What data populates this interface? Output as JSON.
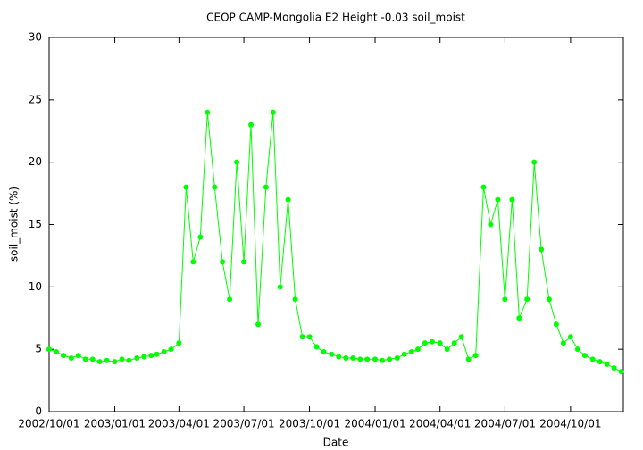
{
  "chart_data": {
    "type": "line",
    "title": "CEOP CAMP-Mongolia E2 Height -0.03 soil_moist",
    "xlabel": "Date",
    "ylabel": "soil_moist (%)",
    "xlim": [
      "2002/10/01",
      "2004/12/14"
    ],
    "xticks": [
      "2002/10/01",
      "2003/01/01",
      "2003/04/01",
      "2003/07/01",
      "2003/10/01",
      "2004/01/01",
      "2004/04/01",
      "2004/07/01",
      "2004/10/01"
    ],
    "ylim": [
      0,
      30
    ],
    "yticks": [
      0,
      5,
      10,
      15,
      20,
      25,
      30
    ],
    "grid": false,
    "x": [
      "2002/10/01",
      "2002/10/11",
      "2002/10/21",
      "2002/11/01",
      "2002/11/11",
      "2002/11/21",
      "2002/12/01",
      "2002/12/11",
      "2002/12/21",
      "2003/01/01",
      "2003/01/11",
      "2003/01/21",
      "2003/02/01",
      "2003/02/11",
      "2003/02/21",
      "2003/03/01",
      "2003/03/11",
      "2003/03/21",
      "2003/04/01",
      "2003/04/11",
      "2003/04/21",
      "2003/05/01",
      "2003/05/11",
      "2003/05/21",
      "2003/06/01",
      "2003/06/11",
      "2003/06/21",
      "2003/07/01",
      "2003/07/11",
      "2003/07/21",
      "2003/08/01",
      "2003/08/11",
      "2003/08/21",
      "2003/09/01",
      "2003/09/11",
      "2003/09/21",
      "2003/10/01",
      "2003/10/11",
      "2003/10/21",
      "2003/11/01",
      "2003/11/11",
      "2003/11/21",
      "2003/12/01",
      "2003/12/11",
      "2003/12/21",
      "2004/01/01",
      "2004/01/11",
      "2004/01/21",
      "2004/02/01",
      "2004/02/11",
      "2004/02/21",
      "2004/03/01",
      "2004/03/11",
      "2004/03/21",
      "2004/04/01",
      "2004/04/11",
      "2004/04/21",
      "2004/05/01",
      "2004/05/11",
      "2004/05/21",
      "2004/06/01",
      "2004/06/11",
      "2004/06/21",
      "2004/07/01",
      "2004/07/11",
      "2004/07/21",
      "2004/08/01",
      "2004/08/11",
      "2004/08/21",
      "2004/09/01",
      "2004/09/11",
      "2004/09/21",
      "2004/10/01",
      "2004/10/11",
      "2004/10/21",
      "2004/11/01",
      "2004/11/11",
      "2004/11/21",
      "2004/12/01",
      "2004/12/11"
    ],
    "series": [
      {
        "name": "soil_moist",
        "color": "#00ff00",
        "values": [
          5.0,
          4.8,
          4.5,
          4.3,
          4.5,
          4.2,
          4.2,
          4.0,
          4.1,
          4.0,
          4.2,
          4.1,
          4.3,
          4.4,
          4.5,
          4.6,
          4.8,
          5.0,
          5.5,
          18,
          12,
          14,
          24,
          18,
          12,
          9,
          20,
          12,
          23,
          7,
          18,
          24,
          10,
          17,
          9,
          6,
          6.0,
          5.2,
          4.8,
          4.6,
          4.4,
          4.3,
          4.3,
          4.2,
          4.2,
          4.2,
          4.1,
          4.2,
          4.3,
          4.6,
          4.8,
          5.0,
          5.5,
          5.6,
          5.5,
          5.0,
          5.5,
          6.0,
          4.2,
          4.5,
          18,
          15,
          17,
          9,
          17,
          7.5,
          9,
          20,
          13,
          9,
          7,
          5.5,
          6.0,
          5.0,
          4.5,
          4.2,
          4.0,
          3.8,
          3.5,
          3.2
        ]
      }
    ]
  }
}
